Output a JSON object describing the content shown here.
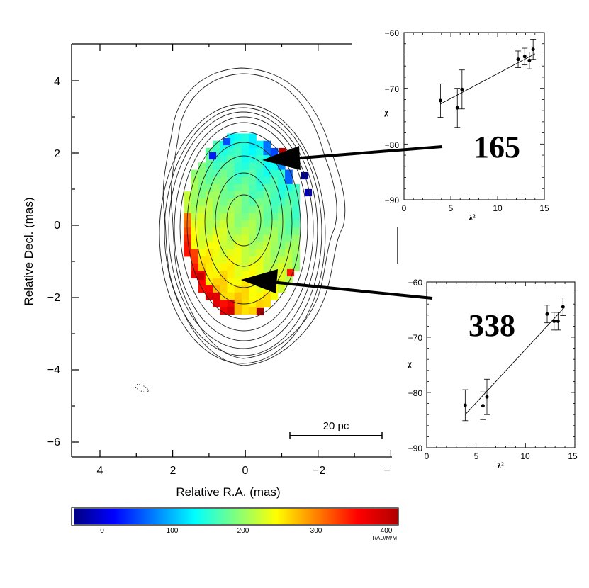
{
  "main_map": {
    "xlabel": "Relative R.A. (mas)",
    "ylabel": "Relative Decl. (mas)",
    "x_ticks": [
      "4",
      "2",
      "0",
      "−2",
      "−"
    ],
    "y_ticks": [
      "4",
      "2",
      "0",
      "−2",
      "−4",
      "−6"
    ],
    "scale_bar_label": "20 pc"
  },
  "colorbar": {
    "ticks": [
      "0",
      "100",
      "200",
      "300",
      "400"
    ],
    "unit": "RAD/M/M",
    "colors": [
      "#00007f",
      "#0000ff",
      "#007fff",
      "#00ffff",
      "#7fff7f",
      "#ffff00",
      "#ff7f00",
      "#ff0000",
      "#b00000"
    ]
  },
  "annotations": {
    "region_a": "165",
    "region_b": "338"
  },
  "chart_data": [
    {
      "type": "scatter",
      "xlabel": "λ²",
      "ylabel": "χ",
      "xlim": [
        0,
        15
      ],
      "ylim": [
        -90,
        -60
      ],
      "x_ticks": [
        "0",
        "5",
        "10",
        "15"
      ],
      "y_ticks": [
        "−60",
        "−70",
        "−80",
        "−90"
      ],
      "points": [
        {
          "x": 3.9,
          "y": -72.2,
          "err": 3.0
        },
        {
          "x": 5.7,
          "y": -73.5,
          "err": 3.5
        },
        {
          "x": 6.2,
          "y": -70.2,
          "err": 3.5
        },
        {
          "x": 12.2,
          "y": -64.8,
          "err": 1.5
        },
        {
          "x": 12.9,
          "y": -64.3,
          "err": 1.5
        },
        {
          "x": 13.4,
          "y": -65.0,
          "err": 1.5
        },
        {
          "x": 13.8,
          "y": -63.0,
          "err": 1.8
        }
      ],
      "fit": [
        [
          3.9,
          -72.8
        ],
        [
          14.0,
          -63.8
        ]
      ]
    },
    {
      "type": "scatter",
      "xlabel": "λ²",
      "ylabel": "χ",
      "xlim": [
        0,
        15
      ],
      "ylim": [
        -90,
        -60
      ],
      "x_ticks": [
        "0",
        "5",
        "10",
        "15"
      ],
      "y_ticks": [
        "−60",
        "−70",
        "−80",
        "−90"
      ],
      "points": [
        {
          "x": 3.9,
          "y": -82.3,
          "err": 2.8
        },
        {
          "x": 5.7,
          "y": -82.4,
          "err": 2.5
        },
        {
          "x": 6.1,
          "y": -80.8,
          "err": 3.2
        },
        {
          "x": 12.2,
          "y": -65.8,
          "err": 1.6
        },
        {
          "x": 12.9,
          "y": -67.1,
          "err": 1.6
        },
        {
          "x": 13.3,
          "y": -67.1,
          "err": 1.6
        },
        {
          "x": 13.8,
          "y": -64.5,
          "err": 1.6
        }
      ],
      "fit": [
        [
          3.9,
          -84.0
        ],
        [
          14.0,
          -64.5
        ]
      ]
    }
  ]
}
